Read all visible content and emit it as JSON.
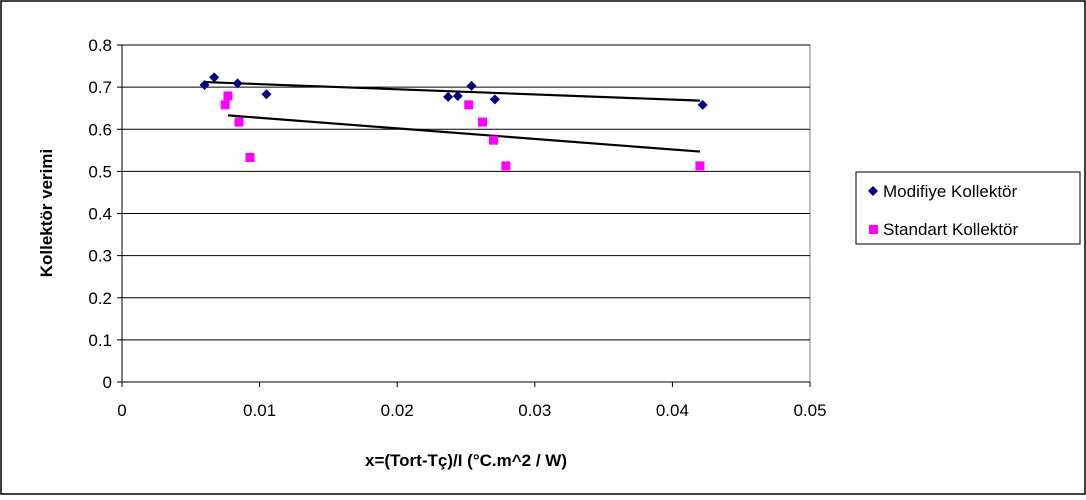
{
  "chart_data": {
    "type": "scatter",
    "xlabel": "x=(Tort-Tç)/I (°C.m^2 / W)",
    "ylabel": "Kollektör verimi",
    "xlim": [
      0,
      0.05
    ],
    "ylim": [
      0,
      0.8
    ],
    "x_ticks": [
      "0",
      "0.01",
      "0.02",
      "0.03",
      "0.04",
      "0.05"
    ],
    "y_ticks": [
      "0",
      "0.1",
      "0.2",
      "0.3",
      "0.4",
      "0.5",
      "0.6",
      "0.7",
      "0.8"
    ],
    "grid": "horizontal",
    "legend_position": "right",
    "series": [
      {
        "name": "Modifiye Kollektör",
        "color": "#000080",
        "marker": "diamond",
        "points": [
          [
            0.006,
            0.705
          ],
          [
            0.0067,
            0.723
          ],
          [
            0.0084,
            0.709
          ],
          [
            0.0105,
            0.683
          ],
          [
            0.0237,
            0.677
          ],
          [
            0.0244,
            0.679
          ],
          [
            0.0254,
            0.703
          ],
          [
            0.0271,
            0.671
          ],
          [
            0.0422,
            0.658
          ]
        ],
        "trendline": [
          [
            0.006,
            0.712
          ],
          [
            0.042,
            0.668
          ]
        ]
      },
      {
        "name": "Standart Kollektör",
        "color": "#ff00ff",
        "marker": "square",
        "points": [
          [
            0.0075,
            0.658
          ],
          [
            0.0077,
            0.679
          ],
          [
            0.0085,
            0.617
          ],
          [
            0.0093,
            0.533
          ],
          [
            0.0252,
            0.658
          ],
          [
            0.0262,
            0.617
          ],
          [
            0.027,
            0.574
          ],
          [
            0.0279,
            0.513
          ],
          [
            0.042,
            0.513
          ]
        ],
        "trendline": [
          [
            0.0077,
            0.633
          ],
          [
            0.042,
            0.547
          ]
        ]
      }
    ]
  }
}
